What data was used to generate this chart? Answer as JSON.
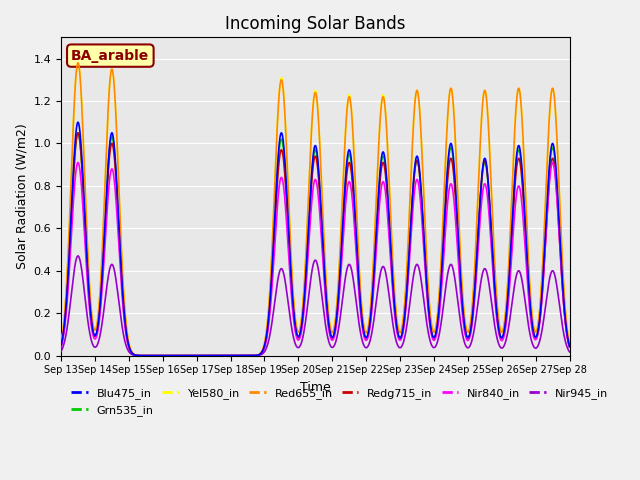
{
  "title": "Incoming Solar Bands",
  "xlabel": "Time",
  "ylabel": "Solar Radiation (W/m2)",
  "annotation": "BA_arable",
  "ylim": [
    0,
    1.5
  ],
  "series": {
    "Blu475_in": {
      "color": "#0000ff",
      "lw": 1.2
    },
    "Grn535_in": {
      "color": "#00cc00",
      "lw": 1.2
    },
    "Yel580_in": {
      "color": "#ffff00",
      "lw": 1.2
    },
    "Red655_in": {
      "color": "#ff8800",
      "lw": 1.2
    },
    "Redg715_in": {
      "color": "#cc0000",
      "lw": 1.2
    },
    "Nir840_in": {
      "color": "#ff00ff",
      "lw": 1.2
    },
    "Nir945_in": {
      "color": "#9900cc",
      "lw": 1.2
    }
  },
  "x_tick_labels": [
    "Sep 13",
    "Sep 14",
    "Sep 15",
    "Sep 16",
    "Sep 17",
    "Sep 18",
    "Sep 19",
    "Sep 20",
    "Sep 21",
    "Sep 22",
    "Sep 23",
    "Sep 24",
    "Sep 25",
    "Sep 26",
    "Sep 27",
    "Sep 28"
  ],
  "n_days": 15,
  "peaks": [
    {
      "day": 0.5,
      "blu": 1.1,
      "grn": 1.05,
      "yel": 1.38,
      "red": 1.38,
      "redg": 1.05,
      "nir840": 0.91,
      "nir945": 0.47
    },
    {
      "day": 1.5,
      "blu": 1.05,
      "grn": 1.03,
      "yel": 1.35,
      "red": 1.35,
      "redg": 1.0,
      "nir840": 0.88,
      "nir945": 0.43
    },
    {
      "day": 6.5,
      "blu": 1.05,
      "grn": 1.02,
      "yel": 1.31,
      "red": 1.3,
      "redg": 0.97,
      "nir840": 0.84,
      "nir945": 0.41
    },
    {
      "day": 7.5,
      "blu": 0.99,
      "grn": 0.97,
      "yel": 1.25,
      "red": 1.24,
      "redg": 0.94,
      "nir840": 0.83,
      "nir945": 0.45
    },
    {
      "day": 8.5,
      "blu": 0.97,
      "grn": 0.95,
      "yel": 1.23,
      "red": 1.22,
      "redg": 0.91,
      "nir840": 0.82,
      "nir945": 0.43
    },
    {
      "day": 9.5,
      "blu": 0.96,
      "grn": 0.94,
      "yel": 1.23,
      "red": 1.22,
      "redg": 0.91,
      "nir840": 0.82,
      "nir945": 0.42
    },
    {
      "day": 10.5,
      "blu": 0.94,
      "grn": 0.92,
      "yel": 1.25,
      "red": 1.25,
      "redg": 0.92,
      "nir840": 0.83,
      "nir945": 0.43
    },
    {
      "day": 11.5,
      "blu": 1.0,
      "grn": 0.98,
      "yel": 1.26,
      "red": 1.26,
      "redg": 0.93,
      "nir840": 0.81,
      "nir945": 0.43
    },
    {
      "day": 12.5,
      "blu": 0.93,
      "grn": 0.91,
      "yel": 1.25,
      "red": 1.25,
      "redg": 0.92,
      "nir840": 0.81,
      "nir945": 0.41
    },
    {
      "day": 13.5,
      "blu": 0.99,
      "grn": 0.97,
      "yel": 1.26,
      "red": 1.26,
      "redg": 0.93,
      "nir840": 0.8,
      "nir945": 0.4
    },
    {
      "day": 14.5,
      "blu": 1.0,
      "grn": 0.98,
      "yel": 1.26,
      "red": 1.26,
      "redg": 0.93,
      "nir840": 0.91,
      "nir945": 0.4
    }
  ]
}
